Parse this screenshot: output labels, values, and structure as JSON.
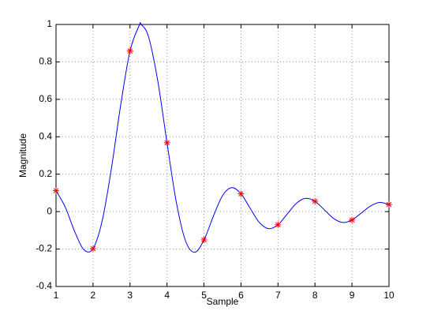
{
  "chart_data": {
    "type": "line",
    "x_label": "Sample",
    "y_label": "Magnitude",
    "xlim": [
      1,
      10
    ],
    "ylim": [
      -0.4,
      1
    ],
    "xticks": [
      1,
      2,
      3,
      4,
      5,
      6,
      7,
      8,
      9,
      10
    ],
    "yticks": [
      -0.4,
      -0.2,
      0,
      0.2,
      0.4,
      0.6,
      0.8,
      1
    ],
    "grid": true,
    "series": [
      {
        "style": "line",
        "color": "#0000ff",
        "x": [
          1,
          1.25,
          1.5,
          1.75,
          2,
          2.25,
          2.5,
          2.75,
          3,
          3.25,
          3.3,
          3.5,
          3.75,
          4,
          4.25,
          4.5,
          4.75,
          5,
          5.25,
          5.5,
          5.75,
          6,
          6.25,
          6.5,
          6.75,
          7,
          7.25,
          7.5,
          7.75,
          8,
          8.25,
          8.5,
          8.75,
          9,
          9.25,
          9.5,
          9.75,
          10
        ],
        "values": [
          0.112,
          0.024,
          -0.104,
          -0.203,
          -0.198,
          -0.047,
          0.234,
          0.572,
          0.858,
          0.996,
          1,
          0.935,
          0.699,
          0.368,
          0.052,
          -0.156,
          -0.217,
          -0.151,
          -0.026,
          0.085,
          0.128,
          0.095,
          0.017,
          -0.059,
          -0.091,
          -0.07,
          -0.013,
          0.045,
          0.071,
          0.055,
          0.01,
          -0.036,
          -0.058,
          -0.045,
          -0.008,
          0.03,
          0.049,
          0.038
        ]
      },
      {
        "style": "marker",
        "color": "#ff0000",
        "x": [
          1,
          2,
          3,
          4,
          5,
          6,
          7,
          8,
          9,
          10
        ],
        "values": [
          0.112,
          -0.198,
          0.858,
          0.368,
          -0.151,
          0.095,
          -0.07,
          0.055,
          -0.045,
          0.038
        ]
      }
    ]
  }
}
